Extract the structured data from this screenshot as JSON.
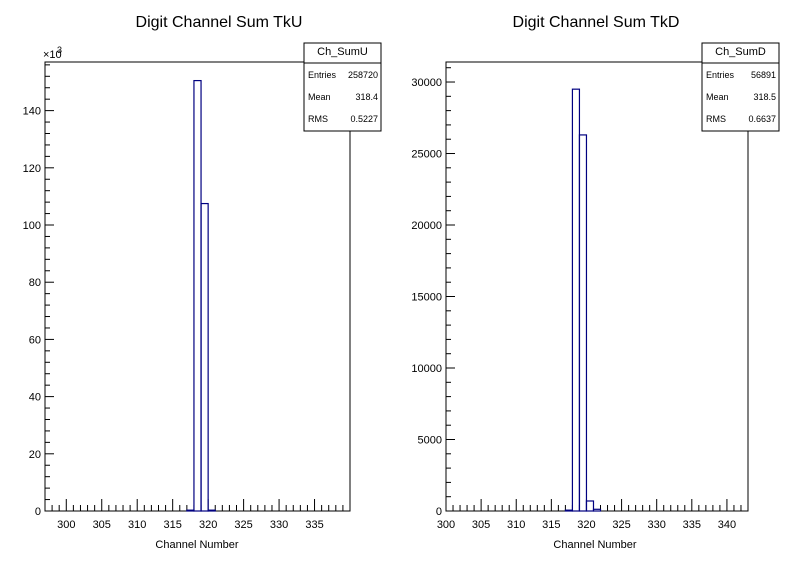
{
  "chart_data": [
    {
      "type": "bar",
      "title": "Digit Channel Sum TkU",
      "xlabel": "Channel Number",
      "ylabel": "",
      "xlim": [
        297,
        340
      ],
      "ylim": [
        0,
        157
      ],
      "y_exponent_label": "×10",
      "y_exponent_power": "3",
      "x_ticks": [
        300,
        305,
        310,
        315,
        320,
        325,
        330,
        335
      ],
      "y_ticks": [
        0,
        20,
        40,
        60,
        80,
        100,
        120,
        140
      ],
      "bin_width": 1,
      "bins": [
        {
          "x": 317,
          "value": 0.3
        },
        {
          "x": 318,
          "value": 150.5
        },
        {
          "x": 319,
          "value": 107.5
        },
        {
          "x": 320,
          "value": 0.3
        }
      ],
      "stats": {
        "name": "Ch_SumU",
        "rows": [
          {
            "label": "Entries",
            "value": "258720"
          },
          {
            "label": "Mean",
            "value": "318.4"
          },
          {
            "label": "RMS",
            "value": "0.5227"
          }
        ]
      },
      "line_color": "#000080"
    },
    {
      "type": "bar",
      "title": "Digit Channel Sum TkD",
      "xlabel": "Channel Number",
      "ylabel": "",
      "xlim": [
        300,
        343
      ],
      "ylim": [
        0,
        31400
      ],
      "x_ticks": [
        300,
        305,
        310,
        315,
        320,
        325,
        330,
        335,
        340
      ],
      "y_ticks": [
        0,
        5000,
        10000,
        15000,
        20000,
        25000,
        30000
      ],
      "bin_width": 1,
      "bins": [
        {
          "x": 317,
          "value": 60
        },
        {
          "x": 318,
          "value": 29500
        },
        {
          "x": 319,
          "value": 26300
        },
        {
          "x": 320,
          "value": 700
        },
        {
          "x": 321,
          "value": 120
        }
      ],
      "stats": {
        "name": "Ch_SumD",
        "rows": [
          {
            "label": "Entries",
            "value": "56891"
          },
          {
            "label": "Mean",
            "value": "318.5"
          },
          {
            "label": "RMS",
            "value": "0.6637"
          }
        ]
      },
      "line_color": "#000080"
    }
  ]
}
